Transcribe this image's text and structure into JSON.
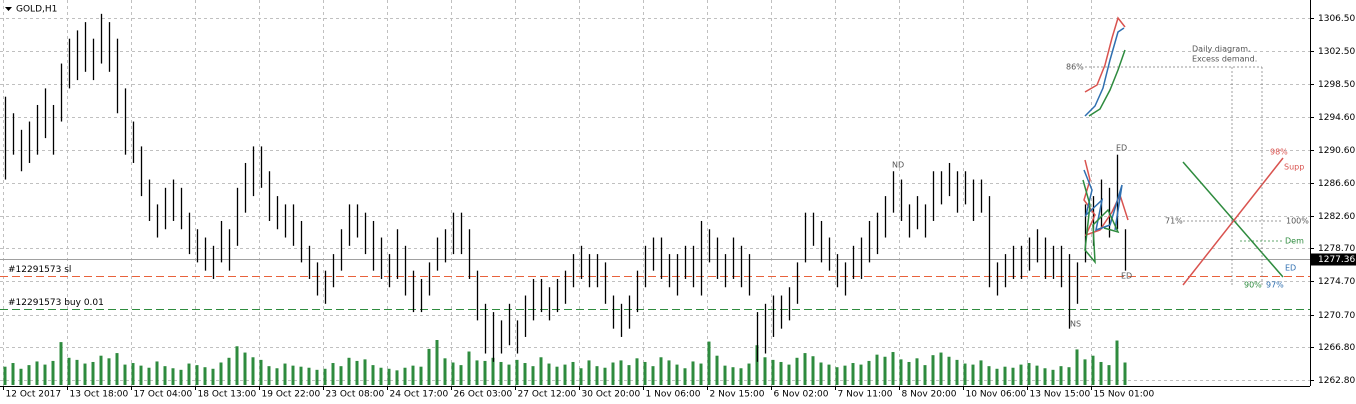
{
  "chart_data": {
    "type": "ohlc-bars",
    "title": "GOLD,H1",
    "categories": [
      "12 Oct 2017",
      null,
      null,
      null,
      null,
      null,
      null,
      null,
      "13 Oct 18:00",
      null,
      null,
      null,
      null,
      null,
      null,
      null,
      "17 Oct 04:00",
      null,
      null,
      null,
      null,
      null,
      null,
      null,
      "18 Oct 13:00",
      null,
      null,
      null,
      null,
      null,
      null,
      null,
      "19 Oct 22:00",
      null,
      null,
      null,
      null,
      null,
      null,
      null,
      "23 Oct 08:00",
      null,
      null,
      null,
      null,
      null,
      null,
      null,
      "24 Oct 17:00",
      null,
      null,
      null,
      null,
      null,
      null,
      null,
      "26 Oct 03:00",
      null,
      null,
      null,
      null,
      null,
      null,
      null,
      "27 Oct 12:00",
      null,
      null,
      null,
      null,
      null,
      null,
      null,
      "30 Oct 20:00",
      null,
      null,
      null,
      null,
      null,
      null,
      null,
      "1 Nov 06:00",
      null,
      null,
      null,
      null,
      null,
      null,
      null,
      "2 Nov 15:00",
      null,
      null,
      null,
      null,
      null,
      null,
      null,
      "6 Nov 02:00",
      null,
      null,
      null,
      null,
      null,
      null,
      null,
      "7 Nov 11:00",
      null,
      null,
      null,
      null,
      null,
      null,
      null,
      "8 Nov 20:00",
      null,
      null,
      null,
      null,
      null,
      null,
      null,
      "10 Nov 06:00",
      null,
      null,
      null,
      null,
      null,
      null,
      null,
      "13 Nov 15:00",
      null,
      null,
      null,
      null,
      null,
      null,
      null,
      "15 Nov 01:00",
      null,
      null,
      null,
      null
    ],
    "high": [
      1297,
      1295,
      1293,
      1294,
      1296,
      1298,
      1296,
      1301,
      1304,
      1305,
      1306,
      1304,
      1307,
      1306,
      1304,
      1298,
      1294,
      1291,
      1287,
      1284,
      1286,
      1287,
      1286,
      1283,
      1281,
      1280,
      1279,
      1282,
      1281,
      1286,
      1289,
      1291,
      1291,
      1288,
      1285,
      1284,
      1284,
      1282,
      1279,
      1277,
      1276,
      1278,
      1281,
      1284,
      1284,
      1283,
      1282,
      1280,
      1278,
      1281,
      1279,
      1276,
      1275,
      1277,
      1280,
      1281,
      1283,
      1283,
      1281,
      1276,
      1272,
      1271,
      1270,
      1272,
      1270,
      1273,
      1275,
      1275,
      1274,
      1275,
      1276,
      1278,
      1279,
      1278,
      1278,
      1277,
      1273,
      1272,
      1273,
      1276,
      1279,
      1280,
      1280,
      1278,
      1278,
      1279,
      1279,
      1282,
      1281,
      1280,
      1278,
      1280,
      1279,
      1278,
      1271,
      1272,
      1273,
      1273,
      1274,
      1277,
      1283,
      1283,
      1282,
      1280,
      1278,
      1277,
      1279,
      1280,
      1282,
      1283,
      1285,
      1288,
      1287,
      1284,
      1285,
      1284,
      1288,
      1288,
      1289,
      1288,
      1288,
      1287,
      1287,
      1285,
      1277,
      1278,
      1279,
      1279,
      1280,
      1281,
      1280,
      1279,
      1279,
      1278,
      1277,
      1284,
      1285,
      1287,
      1286,
      1290,
      1281
    ],
    "low": [
      1287,
      1290,
      1288,
      1289,
      1290,
      1292,
      1290,
      1294,
      1298,
      1299,
      1300,
      1299,
      1301,
      1300,
      1295,
      1290,
      1289,
      1285,
      1282,
      1280,
      1281,
      1282,
      1281,
      1278,
      1277,
      1276,
      1275,
      1277,
      1276,
      1279,
      1283,
      1285,
      1286,
      1282,
      1281,
      1280,
      1279,
      1277,
      1275,
      1273,
      1272,
      1274,
      1276,
      1279,
      1280,
      1278,
      1276,
      1275,
      1274,
      1275,
      1273,
      1271,
      1271,
      1273,
      1276,
      1277,
      1278,
      1278,
      1275,
      1270,
      1266,
      1265,
      1266,
      1267,
      1266,
      1268,
      1270,
      1271,
      1270,
      1271,
      1272,
      1274,
      1275,
      1274,
      1274,
      1272,
      1269,
      1268,
      1269,
      1271,
      1274,
      1276,
      1275,
      1274,
      1273,
      1275,
      1274,
      1273,
      1277,
      1275,
      1274,
      1275,
      1274,
      1273,
      1265,
      1266,
      1268,
      1269,
      1270,
      1272,
      1277,
      1279,
      1277,
      1276,
      1274,
      1273,
      1275,
      1275,
      1277,
      1278,
      1280,
      1283,
      1282,
      1280,
      1281,
      1280,
      1282,
      1284,
      1285,
      1283,
      1284,
      1282,
      1283,
      1274,
      1273,
      1274,
      1275,
      1275,
      1276,
      1277,
      1275,
      1275,
      1274,
      1269,
      1272,
      1277,
      1279,
      1281,
      1280,
      1281,
      1276
    ],
    "volume": [
      3500,
      4200,
      3100,
      3800,
      4500,
      3900,
      4600,
      8200,
      5200,
      4800,
      4100,
      4400,
      5600,
      5100,
      6100,
      3900,
      4200,
      3700,
      3300,
      4500,
      3600,
      3200,
      2900,
      4100,
      3800,
      3400,
      3100,
      4300,
      5200,
      7400,
      6200,
      5300,
      4800,
      3600,
      3200,
      4100,
      3700,
      3500,
      3300,
      2900,
      3100,
      4200,
      3600,
      5200,
      4600,
      4900,
      3800,
      3300,
      3100,
      2800,
      3300,
      3700,
      3500,
      6900,
      8600,
      5100,
      4300,
      3800,
      6400,
      4700,
      4600,
      5200,
      4400,
      3900,
      4800,
      4200,
      3600,
      5300,
      4100,
      3500,
      3900,
      4400,
      3200,
      4700,
      3600,
      3300,
      4300,
      4700,
      3800,
      5100,
      4400,
      3600,
      5300,
      4700,
      3900,
      3200,
      4500,
      4100,
      8300,
      5600,
      3700,
      3400,
      3200,
      4100,
      7600,
      5300,
      4800,
      4400,
      3900,
      5200,
      6100,
      5500,
      4300,
      3900,
      3400,
      3700,
      4200,
      3900,
      4600,
      5800,
      5400,
      6300,
      4900,
      4400,
      5100,
      3800,
      5700,
      6200,
      5400,
      4800,
      4100,
      3900,
      4700,
      3600,
      3100,
      3500,
      3300,
      3900,
      4200,
      3700,
      3200,
      2900,
      3600,
      3400,
      6800,
      4900,
      5600,
      4400,
      3800,
      8500,
      4300
    ],
    "color": "#000000",
    "volume_color": "#2e8b3e",
    "ylim": [
      1262.08,
      1308.67
    ],
    "yticks": [
      {
        "value": 1306.5,
        "label": "1306.50"
      },
      {
        "value": 1302.5,
        "label": "1302.50"
      },
      {
        "value": 1298.5,
        "label": "1298.50"
      },
      {
        "value": 1294.6,
        "label": "1294.60"
      },
      {
        "value": 1290.6,
        "label": "1290.60"
      },
      {
        "value": 1286.6,
        "label": "1286.60"
      },
      {
        "value": 1282.6,
        "label": "1282.60"
      },
      {
        "value": 1278.7,
        "label": "1278.70"
      },
      {
        "value": 1274.7,
        "label": "1274.70"
      },
      {
        "value": 1270.7,
        "label": "1270.70"
      },
      {
        "value": 1266.8,
        "label": "1266.80"
      },
      {
        "value": 1262.8,
        "label": "1262.80"
      }
    ],
    "grid": true,
    "current_price": {
      "value": 1277.36,
      "label": "1277.36"
    },
    "order_lines": [
      {
        "label": "#12291573 sl",
        "value": 1275.3,
        "color": "#e8623c"
      },
      {
        "label": "#12291573 buy 0.01",
        "value": 1271.4,
        "color": "#2e8b3e"
      }
    ],
    "annotations": [
      "ND",
      "NS",
      "ED",
      "ED",
      "Daily diagram.",
      "Excess demand.",
      "86%",
      "98%",
      "Supp",
      "71%",
      "100%",
      "Dem",
      "ED",
      "90%",
      "97%"
    ]
  }
}
